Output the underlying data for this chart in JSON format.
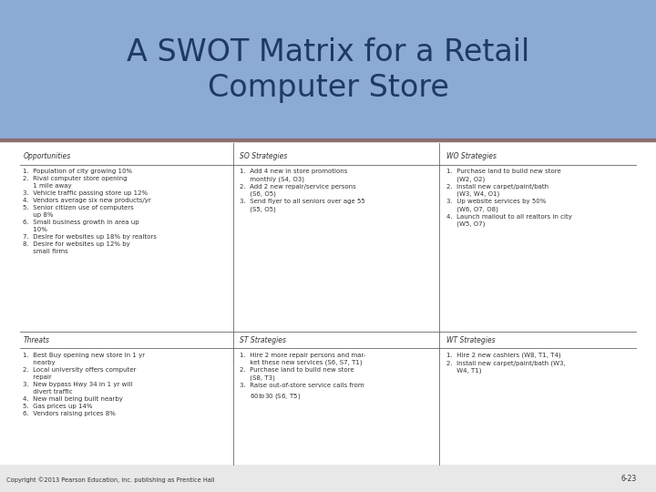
{
  "title": "A SWOT Matrix for a Retail\nComputer Store",
  "title_bg": "#8baad4",
  "title_color": "#1f3864",
  "title_fontsize": 24,
  "slide_bg": "#e8e8e8",
  "content_bg": "#ffffff",
  "divider_color": "#8b6f6f",
  "header_line_color": "#666666",
  "text_color": "#333333",
  "header_color": "#333333",
  "copyright": "Copyright ©2013 Pearson Education, Inc. publishing as Prentice Hall",
  "page_num": "6-23",
  "opportunities_header": "Opportunities",
  "opportunities": [
    "1.  Population of city growing 10%",
    "2.  Rival computer store opening\n     1 mile away",
    "3.  Vehicle traffic passing store up 12%",
    "4.  Vendors average six new products/yr",
    "5.  Senior citizen use of computers\n     up 8%",
    "6.  Small business growth in area up\n     10%",
    "7.  Desire for websites up 18% by realtors",
    "8.  Desire for websites up 12% by\n     small firms"
  ],
  "so_header": "SO Strategies",
  "so_strategies": [
    "1.  Add 4 new in store promotions\n     monthly (S4, O3)",
    "2.  Add 2 new repair/service persons\n     (S6, O5)",
    "3.  Send flyer to all seniors over age 55\n     (S5, O5)"
  ],
  "wo_header": "WO Strategies",
  "wo_strategies": [
    "1.  Purchase land to build new store\n     (W2, O2)",
    "2.  Install new carpet/paint/bath\n     (W3, W4, O1)",
    "3.  Up website services by 50%\n     (W6, O7, O8)",
    "4.  Launch mailout to all realtors in city\n     (W5, O7)"
  ],
  "threats_header": "Threats",
  "threats": [
    "1.  Best Buy opening new store in 1 yr\n     nearby",
    "2.  Local university offers computer\n     repair",
    "3.  New bypass Hwy 34 in 1 yr will\n     divert traffic",
    "4.  New mall being built nearby",
    "5.  Gas prices up 14%",
    "6.  Vendors raising prices 8%"
  ],
  "st_header": "ST Strategies",
  "st_strategies": [
    "1.  Hire 2 more repair persons and mar-\n     ket these new services (S6, S7, T1)",
    "2.  Purchase land to build new store\n     (S8, T3)",
    "3.  Raise out-of-store service calls from\n     $60 to $30 (S6, T5)"
  ],
  "wt_header": "WT Strategies",
  "wt_strategies": [
    "1.  Hire 2 new cashiers (W8, T1, T4)",
    "2.  Install new carpet/paint/bath (W3,\n     W4, T1)"
  ]
}
